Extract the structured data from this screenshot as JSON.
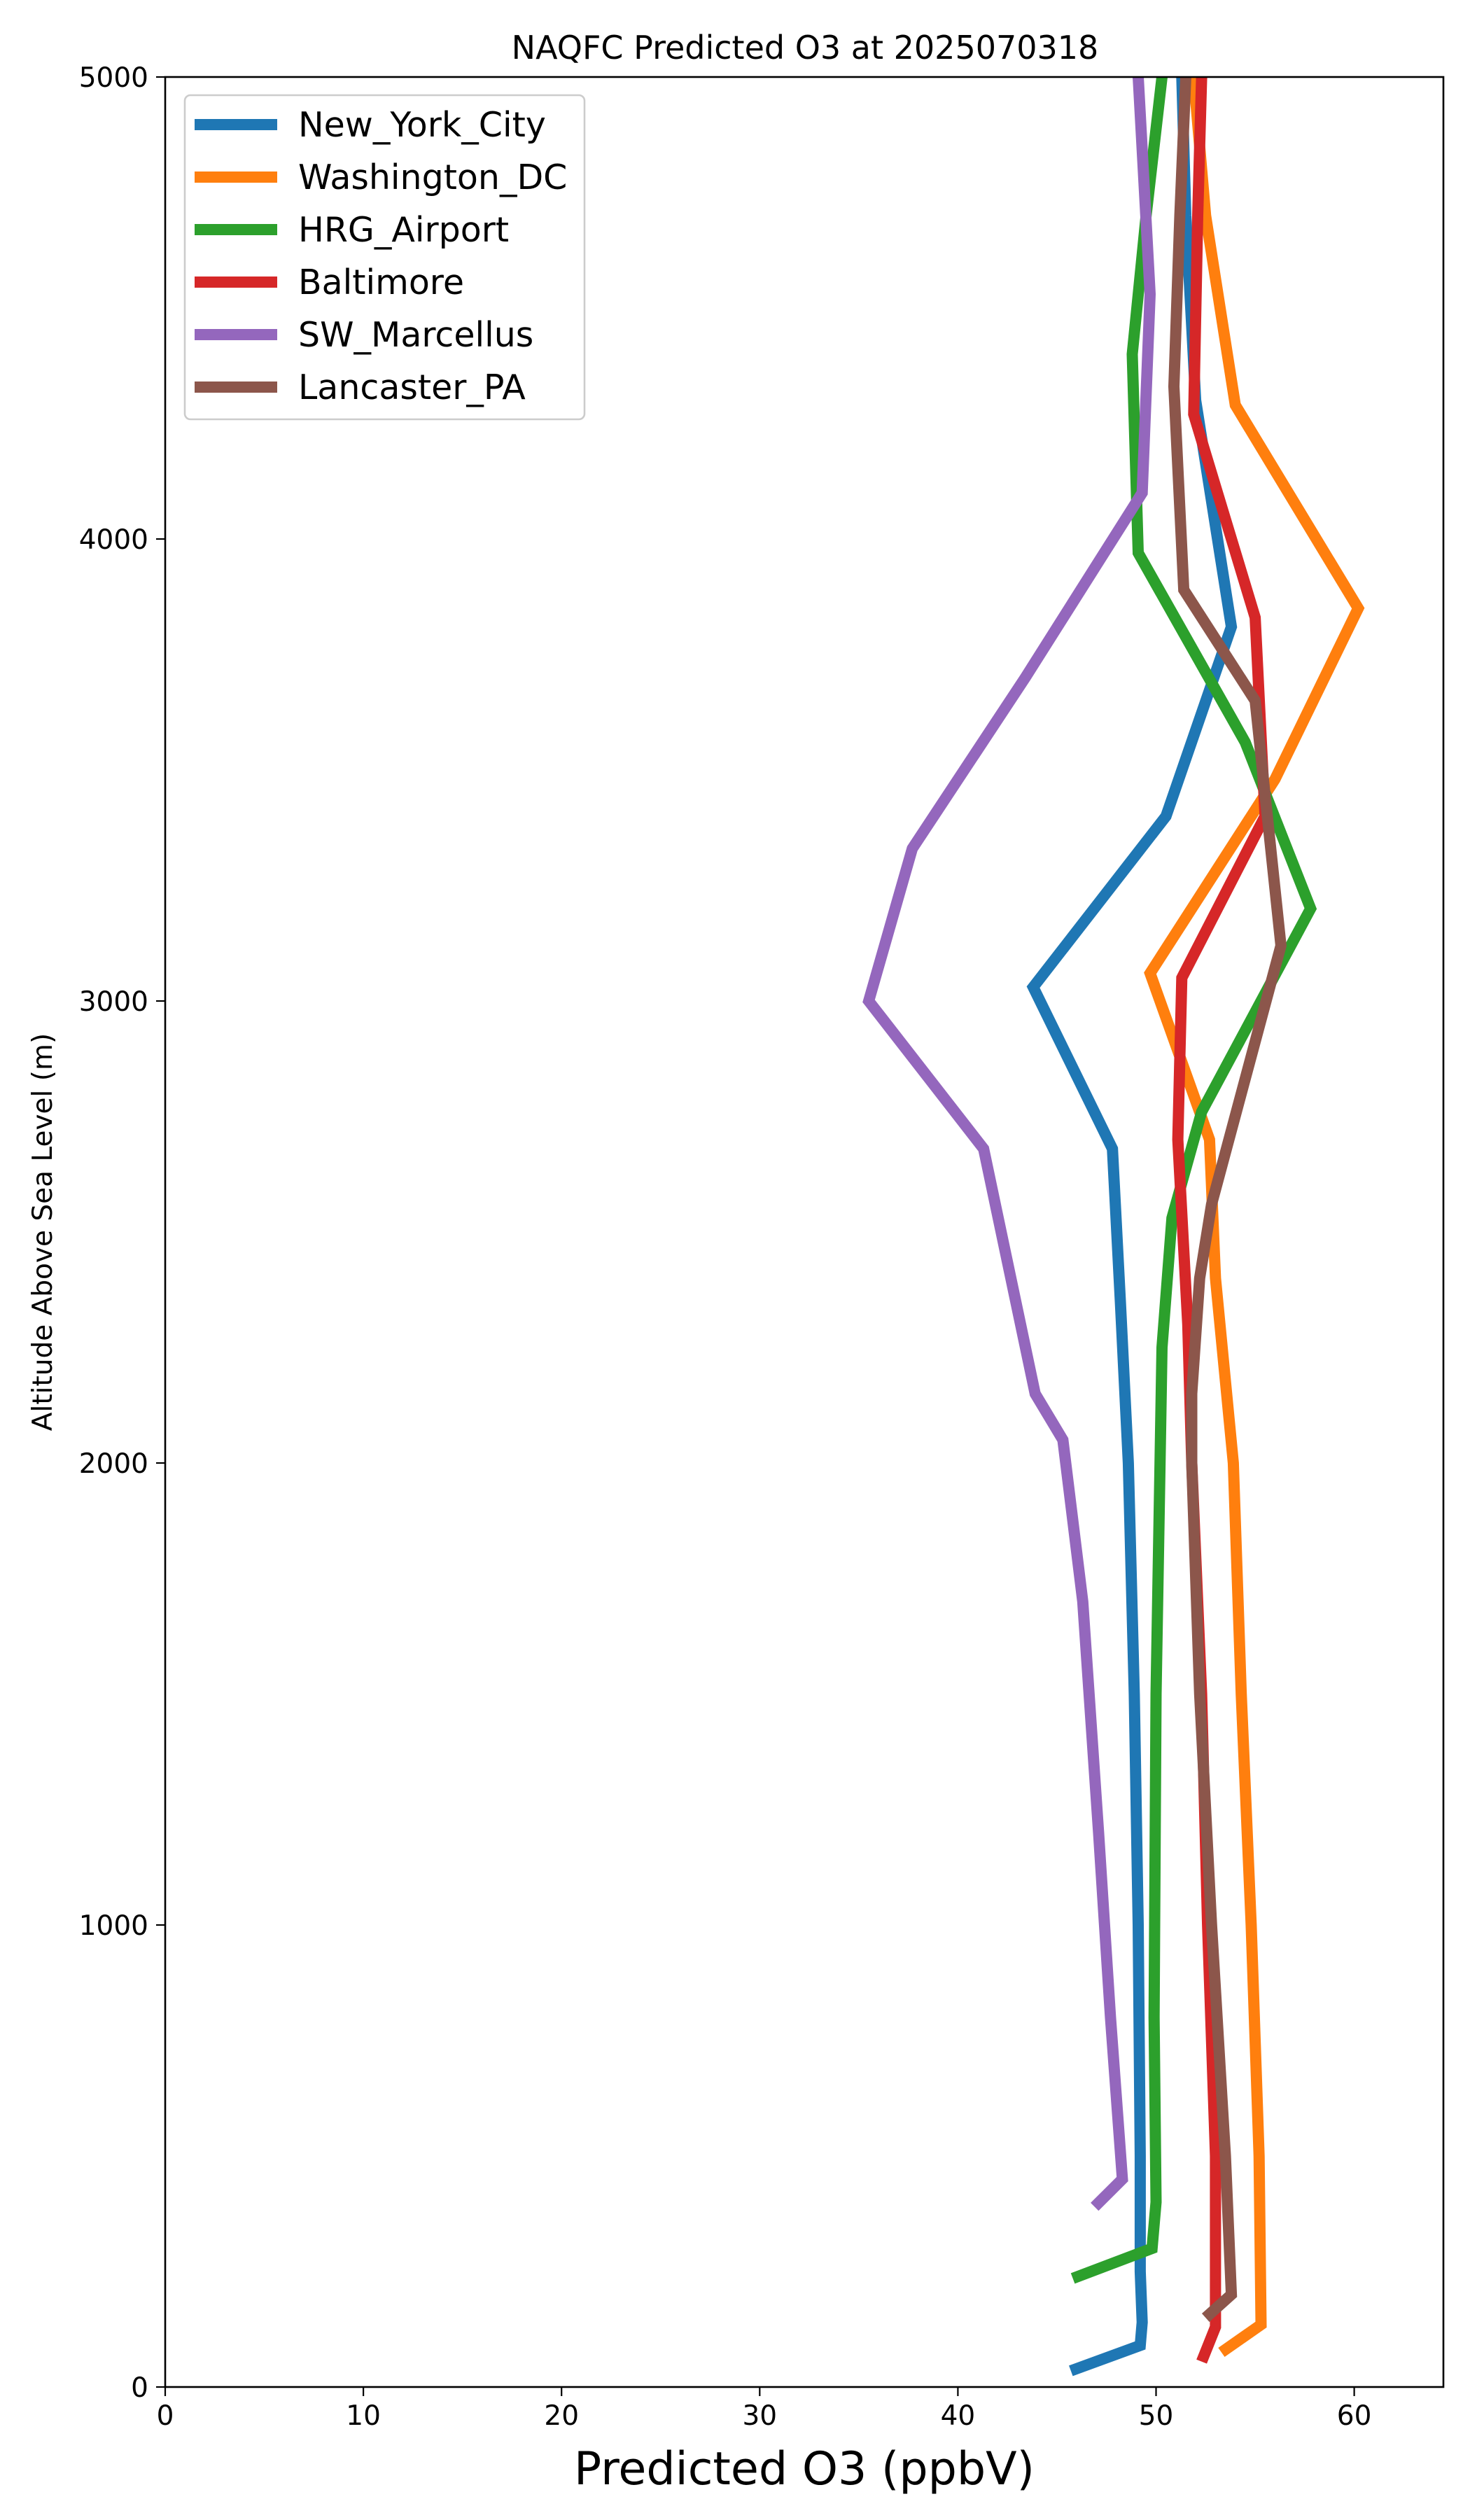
{
  "chart_data": {
    "type": "line",
    "title": "NAQFC Predicted O3 at 2025070318",
    "xlabel": "Predicted O3 (ppbV)",
    "ylabel": "Altitude Above Sea Level (m)",
    "xlim": [
      0,
      64.5
    ],
    "ylim": [
      0,
      5000
    ],
    "xticks": [
      0,
      10,
      20,
      30,
      40,
      50,
      60
    ],
    "yticks": [
      0,
      1000,
      2000,
      3000,
      4000,
      5000
    ],
    "grid": false,
    "legend_position": "upper-left",
    "series": [
      {
        "name": "New_York_City",
        "color": "#1f77b4",
        "points": [
          [
            45.7,
            35
          ],
          [
            49.2,
            90
          ],
          [
            49.3,
            140
          ],
          [
            49.2,
            250
          ],
          [
            49.2,
            500
          ],
          [
            49.1,
            1000
          ],
          [
            48.9,
            1500
          ],
          [
            48.6,
            2000
          ],
          [
            48.2,
            2350
          ],
          [
            47.8,
            2680
          ],
          [
            43.8,
            3030
          ],
          [
            50.5,
            3400
          ],
          [
            53.8,
            3810
          ],
          [
            52.0,
            4300
          ],
          [
            51.5,
            4700
          ],
          [
            51.3,
            5000
          ]
        ]
      },
      {
        "name": "Washington_DC",
        "color": "#ff7f0e",
        "points": [
          [
            53.3,
            75
          ],
          [
            55.3,
            135
          ],
          [
            55.2,
            500
          ],
          [
            54.8,
            1000
          ],
          [
            54.3,
            1500
          ],
          [
            53.9,
            2000
          ],
          [
            53.0,
            2400
          ],
          [
            52.7,
            2700
          ],
          [
            49.7,
            3060
          ],
          [
            56.0,
            3480
          ],
          [
            60.2,
            3850
          ],
          [
            54.0,
            4290
          ],
          [
            52.5,
            4700
          ],
          [
            51.9,
            5000
          ]
        ]
      },
      {
        "name": "HRG_Airport",
        "color": "#2ca02c",
        "points": [
          [
            45.8,
            235
          ],
          [
            49.8,
            300
          ],
          [
            50.0,
            400
          ],
          [
            49.9,
            800
          ],
          [
            50.0,
            1500
          ],
          [
            50.2,
            2000
          ],
          [
            50.3,
            2250
          ],
          [
            50.8,
            2530
          ],
          [
            52.3,
            2760
          ],
          [
            57.8,
            3200
          ],
          [
            54.5,
            3560
          ],
          [
            49.1,
            3970
          ],
          [
            48.8,
            4400
          ],
          [
            49.5,
            4700
          ],
          [
            50.3,
            5000
          ]
        ]
      },
      {
        "name": "Baltimore",
        "color": "#d62728",
        "points": [
          [
            52.3,
            55
          ],
          [
            53.0,
            130
          ],
          [
            53.0,
            500
          ],
          [
            52.6,
            1000
          ],
          [
            52.3,
            1500
          ],
          [
            51.8,
            2000
          ],
          [
            51.6,
            2300
          ],
          [
            51.1,
            2700
          ],
          [
            51.3,
            3050
          ],
          [
            55.5,
            3400
          ],
          [
            55.0,
            3830
          ],
          [
            51.9,
            4270
          ],
          [
            52.1,
            4700
          ],
          [
            52.3,
            5000
          ]
        ]
      },
      {
        "name": "SW_Marcellus",
        "color": "#9467bd",
        "points": [
          [
            46.9,
            390
          ],
          [
            48.3,
            450
          ],
          [
            47.7,
            800
          ],
          [
            47.1,
            1200
          ],
          [
            46.3,
            1700
          ],
          [
            45.3,
            2050
          ],
          [
            43.9,
            2150
          ],
          [
            41.3,
            2680
          ],
          [
            35.5,
            3000
          ],
          [
            37.7,
            3330
          ],
          [
            43.4,
            3700
          ],
          [
            49.3,
            4100
          ],
          [
            49.7,
            4530
          ],
          [
            49.1,
            5000
          ]
        ]
      },
      {
        "name": "Lancaster_PA",
        "color": "#8c564b",
        "points": [
          [
            52.5,
            150
          ],
          [
            53.8,
            200
          ],
          [
            53.5,
            500
          ],
          [
            52.8,
            1000
          ],
          [
            52.2,
            1500
          ],
          [
            51.8,
            2000
          ],
          [
            51.8,
            2150
          ],
          [
            52.2,
            2400
          ],
          [
            52.8,
            2560
          ],
          [
            56.3,
            3120
          ],
          [
            55.0,
            3650
          ],
          [
            51.4,
            3890
          ],
          [
            50.9,
            4330
          ],
          [
            51.2,
            4700
          ],
          [
            51.5,
            5000
          ]
        ]
      }
    ]
  }
}
